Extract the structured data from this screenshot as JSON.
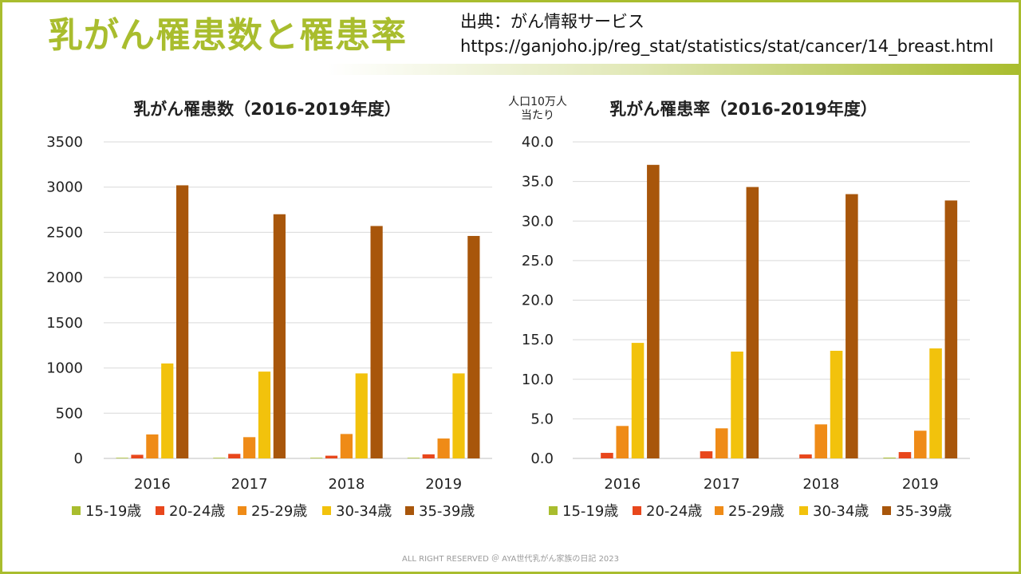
{
  "header": {
    "title": "乳がん罹患数と罹患率",
    "source_label": "出典：がん情報サービス",
    "source_url": "https://ganjoho.jp/reg_stat/statistics/stat/cancer/14_breast.html"
  },
  "footer": {
    "text": "ALL RIGHT RESERVED ＠ AYA世代乳がん家族の日記 2023"
  },
  "colors": {
    "accent": "#a9bd2e",
    "series": [
      "#a9bd2e",
      "#e8471c",
      "#ef8b17",
      "#f2c20c",
      "#a8560b"
    ]
  },
  "chart_data": [
    {
      "type": "bar",
      "title": "乳がん罹患数（2016-2019年度）",
      "ylabel": "",
      "categories": [
        "2016",
        "2017",
        "2018",
        "2019"
      ],
      "ylim": [
        0,
        3500
      ],
      "yticks": [
        "0",
        "500",
        "1000",
        "1500",
        "2000",
        "2500",
        "3000",
        "3500"
      ],
      "ytick_values": [
        0,
        500,
        1000,
        1500,
        2000,
        2500,
        3000,
        3500
      ],
      "grid": true,
      "legend": "bottom",
      "series": [
        {
          "name": "15-19歳",
          "values": [
            1,
            2,
            1,
            3
          ]
        },
        {
          "name": "20-24歳",
          "values": [
            40,
            50,
            30,
            45
          ]
        },
        {
          "name": "25-29歳",
          "values": [
            265,
            235,
            270,
            220
          ]
        },
        {
          "name": "30-34歳",
          "values": [
            1050,
            960,
            940,
            940
          ]
        },
        {
          "name": "35-39歳",
          "values": [
            3020,
            2700,
            2570,
            2460
          ]
        }
      ]
    },
    {
      "type": "bar",
      "title": "乳がん罹患率（2016-2019年度）",
      "ylabel": "人口10万人当たり",
      "ylabel_lines": [
        "人口10万人",
        "当たり"
      ],
      "categories": [
        "2016",
        "2017",
        "2018",
        "2019"
      ],
      "ylim": [
        0,
        40
      ],
      "yticks": [
        "0.0",
        "5.0",
        "10.0",
        "15.0",
        "20.0",
        "25.0",
        "30.0",
        "35.0",
        "40.0"
      ],
      "ytick_values": [
        0,
        5,
        10,
        15,
        20,
        25,
        30,
        35,
        40
      ],
      "grid": true,
      "legend": "bottom",
      "series": [
        {
          "name": "15-19歳",
          "values": [
            0.0,
            0.0,
            0.0,
            0.1
          ]
        },
        {
          "name": "20-24歳",
          "values": [
            0.7,
            0.9,
            0.5,
            0.8
          ]
        },
        {
          "name": "25-29歳",
          "values": [
            4.1,
            3.8,
            4.3,
            3.5
          ]
        },
        {
          "name": "30-34歳",
          "values": [
            14.6,
            13.5,
            13.6,
            13.9
          ]
        },
        {
          "name": "35-39歳",
          "values": [
            37.1,
            34.3,
            33.4,
            32.6
          ]
        }
      ]
    }
  ]
}
